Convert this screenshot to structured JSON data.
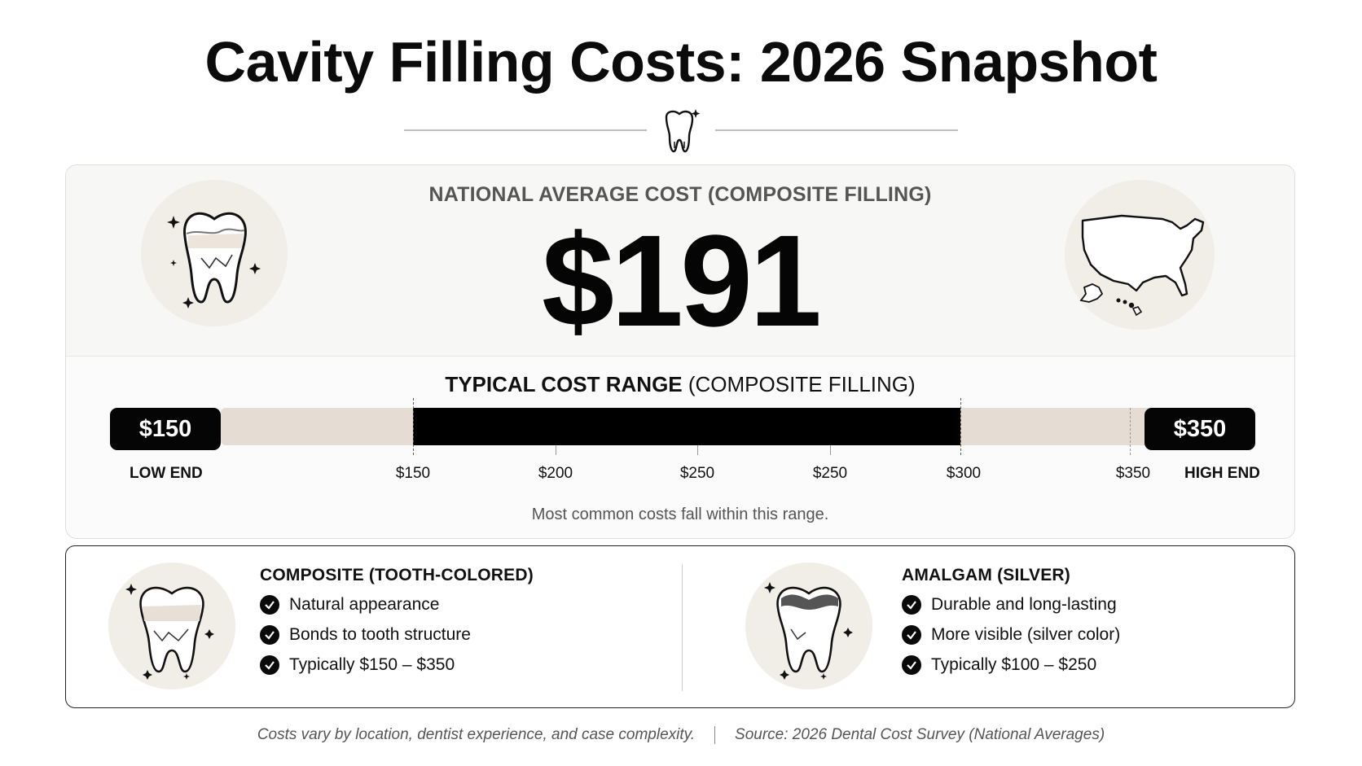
{
  "title": "Cavity Filling Costs: 2026 Snapshot",
  "national": {
    "label": "NATIONAL AVERAGE COST (COMPOSITE FILLING)",
    "value": "$191"
  },
  "range": {
    "title_bold": "TYPICAL COST RANGE",
    "title_rest": " (COMPOSITE FILLING)",
    "low_pill": "$150",
    "high_pill": "$350",
    "low_label": "LOW END",
    "high_label": "HIGH END",
    "ticks": [
      "$150",
      "$200",
      "$250",
      "$250",
      "$300",
      "$350"
    ],
    "highlight_from": 150,
    "highlight_to": 300,
    "note": "Most common costs fall within this range."
  },
  "composite": {
    "title": "COMPOSITE (TOOTH-COLORED)",
    "features": [
      "Natural appearance",
      "Bonds to tooth structure",
      "Typically $150 – $350"
    ]
  },
  "amalgam": {
    "title": "AMALGAM (SILVER)",
    "features": [
      "Durable and long-lasting",
      "More visible (silver color)",
      "Typically $100 – $250"
    ]
  },
  "footer": {
    "left": "Costs vary by location, dentist experience, and case complexity.",
    "right": "Source: 2026 Dental Cost Survey (National Averages)"
  },
  "icons": {
    "header": "tooth-sparkle-icon",
    "top_left": "cracked-tooth-icon",
    "top_right": "usa-map-icon",
    "composite": "composite-tooth-icon",
    "amalgam": "amalgam-tooth-icon",
    "check": "checkmark-icon"
  },
  "colors": {
    "accent": "#000000",
    "track": "#e5ddd4",
    "circle": "#f1ede7"
  }
}
